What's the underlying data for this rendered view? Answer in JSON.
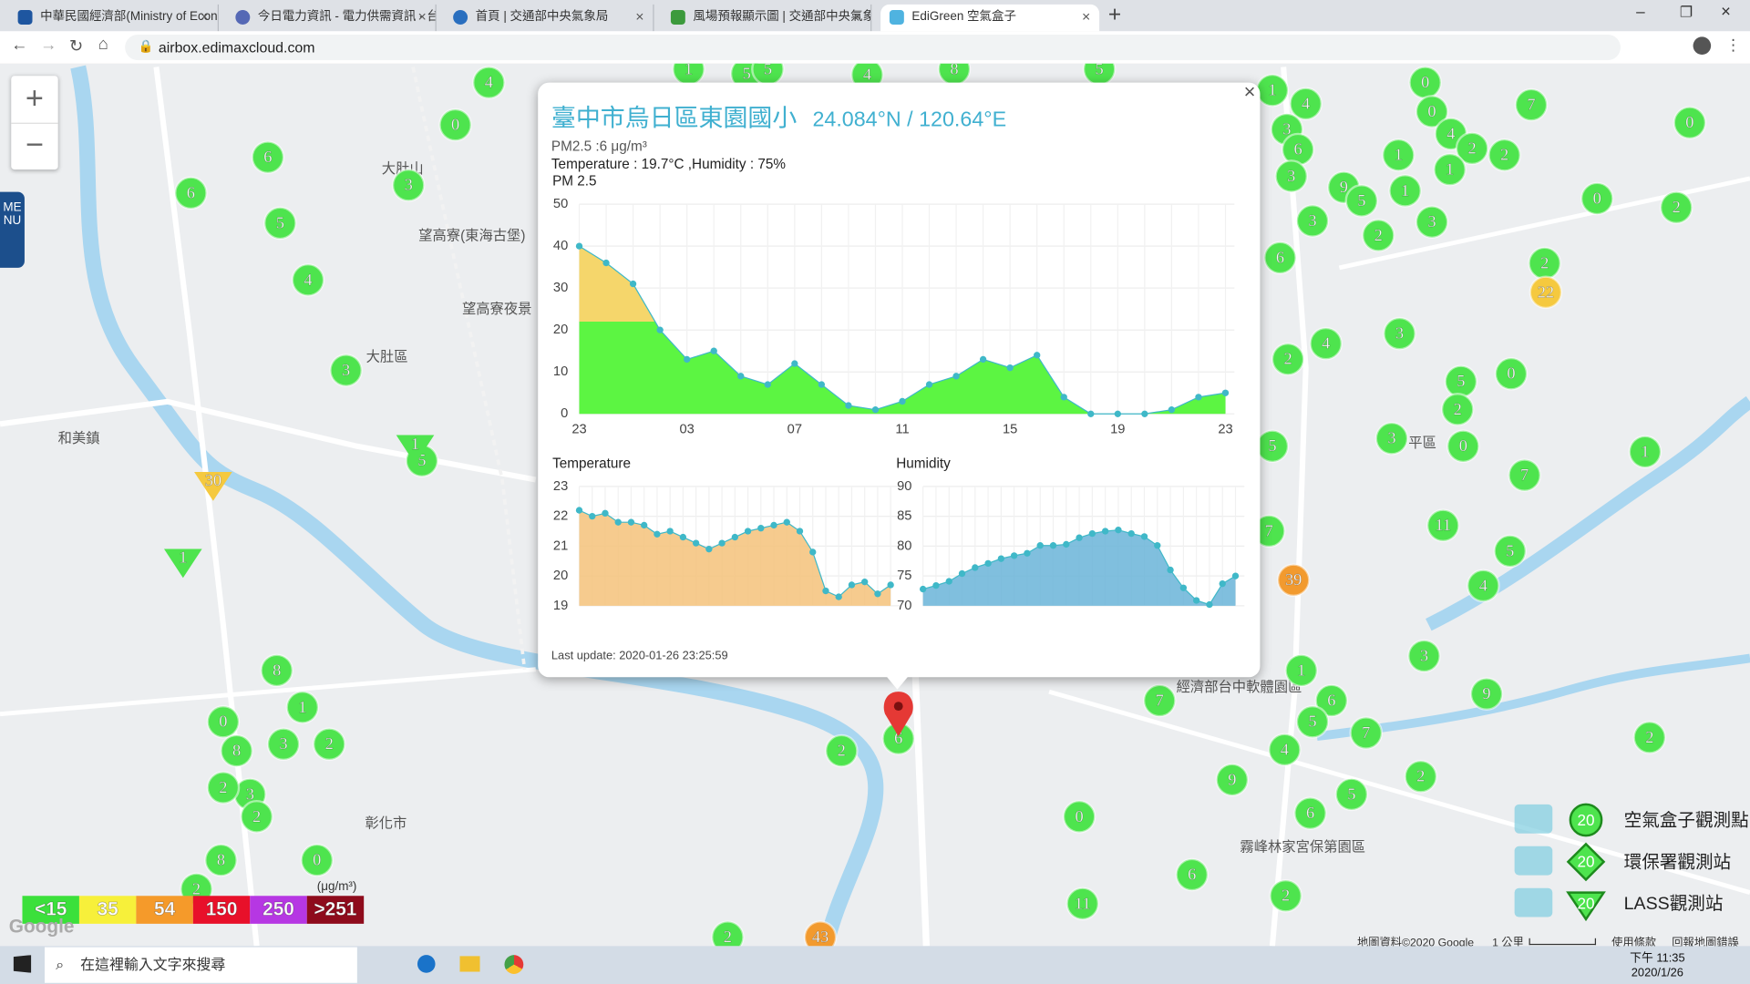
{
  "browser": {
    "tabs": [
      "中華民國經濟部(Ministry of Econ",
      "今日電力資訊 - 電力供需資訊 - 台",
      "首頁 | 交通部中央氣象局",
      "風場預報顯示圖 | 交通部中央氣象",
      "EdiGreen 空氣盒子"
    ],
    "url": "airbox.edimaxcloud.com"
  },
  "map": {
    "menu": "MENU",
    "zoom_in": "+",
    "zoom_out": "−",
    "places": [
      "大肚區",
      "和美鎮",
      "彰化市",
      "望高寮(東海古堡)",
      "望高寮夜景",
      "大肚山",
      "經濟部台中軟體園區",
      "霧峰林家宮保第園區",
      "平區"
    ],
    "markers": [
      {
        "label": "4"
      },
      {
        "label": "0"
      },
      {
        "label": "6"
      },
      {
        "label": "6"
      },
      {
        "label": "3"
      },
      {
        "label": "5"
      },
      {
        "label": "4"
      },
      {
        "label": "3"
      },
      {
        "label": "5"
      },
      {
        "label": "1"
      },
      {
        "label": "4"
      },
      {
        "label": "3"
      },
      {
        "label": "6"
      },
      {
        "label": "3"
      },
      {
        "label": "0"
      },
      {
        "label": "0"
      },
      {
        "label": "4"
      },
      {
        "label": "2"
      },
      {
        "label": "2"
      },
      {
        "label": "1"
      },
      {
        "label": "1"
      },
      {
        "label": "7"
      },
      {
        "label": "0"
      },
      {
        "label": "9"
      },
      {
        "label": "1"
      },
      {
        "label": "5"
      },
      {
        "label": "0"
      },
      {
        "label": "2"
      },
      {
        "label": "3"
      },
      {
        "label": "2"
      },
      {
        "label": "3"
      },
      {
        "label": "6"
      },
      {
        "label": "2"
      },
      {
        "label": "4"
      },
      {
        "label": "2"
      },
      {
        "label": "3"
      },
      {
        "label": "5"
      },
      {
        "label": "2"
      },
      {
        "label": "0"
      },
      {
        "label": "0"
      },
      {
        "label": "3"
      },
      {
        "label": "5"
      },
      {
        "label": "7"
      },
      {
        "label": "1"
      },
      {
        "label": "11"
      },
      {
        "label": "5"
      },
      {
        "label": "4"
      },
      {
        "label": "7"
      },
      {
        "label": "3"
      },
      {
        "label": "9"
      },
      {
        "label": "1"
      },
      {
        "label": "6"
      },
      {
        "label": "5"
      },
      {
        "label": "7"
      },
      {
        "label": "4"
      },
      {
        "label": "7"
      },
      {
        "label": "9"
      },
      {
        "label": "5"
      },
      {
        "label": "2"
      },
      {
        "label": "2"
      },
      {
        "label": "6"
      },
      {
        "label": "0"
      },
      {
        "label": "6"
      },
      {
        "label": "2"
      },
      {
        "label": "11"
      },
      {
        "label": "8"
      },
      {
        "label": "1"
      },
      {
        "label": "0"
      },
      {
        "label": "8"
      },
      {
        "label": "3"
      },
      {
        "label": "2"
      },
      {
        "label": "3"
      },
      {
        "label": "2"
      },
      {
        "label": "2"
      },
      {
        "label": "0"
      },
      {
        "label": "8"
      },
      {
        "label": "2"
      },
      {
        "label": "2"
      },
      {
        "label": "2"
      },
      {
        "label": "1"
      },
      {
        "label": "5"
      },
      {
        "label": "5"
      },
      {
        "label": "4"
      },
      {
        "label": "8"
      },
      {
        "label": "5"
      },
      {
        "label": "6"
      },
      {
        "label": "22",
        "color": "#f5c93f"
      },
      {
        "label": "39",
        "color": "#f29a2e"
      },
      {
        "label": "43",
        "color": "#f29a2e"
      },
      {
        "label": "1",
        "shape": "triangle"
      },
      {
        "label": "30",
        "shape": "triangle",
        "color": "#f5c93f"
      },
      {
        "label": "1",
        "shape": "triangle"
      }
    ],
    "scale_legend": {
      "unit": "(μg/m³)",
      "items": [
        {
          "label": "<15",
          "color": "#3be03b"
        },
        {
          "label": "35",
          "color": "#f7f03a"
        },
        {
          "label": "54",
          "color": "#f59a2a"
        },
        {
          "label": "150",
          "color": "#e8102a"
        },
        {
          "label": "250",
          "color": "#b637e3"
        },
        {
          "label": ">251",
          "color": "#8e0b1c"
        }
      ]
    },
    "station_legend": [
      {
        "badge": "20",
        "label": "空氣盒子觀測點"
      },
      {
        "badge": "20",
        "label": "環保署觀測站"
      },
      {
        "badge": "20",
        "label": "LASS觀測站"
      }
    ],
    "footer": [
      "地圖資料©2020 Google",
      "1 公里",
      "使用條款",
      "回報地圖錯誤"
    ],
    "google": "Google"
  },
  "popup": {
    "close": "×",
    "title": "臺中市烏日區東園國小",
    "coords": "24.084°N / 120.64°E",
    "lines": [
      "PM2.5 :6 μg/m³",
      "Temperature : 19.7°C ,Humidity : 75%"
    ],
    "charts": [
      {
        "type": "area",
        "title": "PM 2.5",
        "categories": [
          "23",
          null,
          null,
          null,
          "03",
          null,
          null,
          null,
          "07",
          null,
          null,
          null,
          "11",
          null,
          null,
          null,
          "15",
          null,
          null,
          null,
          "19",
          null,
          null,
          null,
          "23"
        ],
        "values": [
          40,
          36,
          31,
          20,
          13,
          15,
          9,
          7,
          12,
          7,
          2,
          1,
          3,
          7,
          9,
          13,
          11,
          14,
          4,
          0,
          0,
          0,
          1,
          4,
          5
        ],
        "ylim": [
          0,
          50
        ],
        "yticks": [
          0,
          10,
          20,
          30,
          40,
          50
        ],
        "grid": true,
        "color": "#3fb8c8",
        "fill": "#5cf542",
        "upper_fill": "#f5d66b"
      },
      {
        "type": "area",
        "title": "Temperature",
        "values": [
          22.2,
          22.0,
          22.1,
          21.8,
          21.8,
          21.7,
          21.4,
          21.5,
          21.3,
          21.1,
          20.9,
          21.1,
          21.3,
          21.5,
          21.6,
          21.7,
          21.8,
          21.5,
          20.8,
          19.5,
          19.3,
          19.7,
          19.8,
          19.4,
          19.7
        ],
        "ylim": [
          19,
          23
        ],
        "yticks": [
          19,
          20,
          21,
          22,
          23
        ],
        "grid": true,
        "color": "#3fb8c8",
        "fill": "#f5c27a"
      },
      {
        "type": "area",
        "title": "Humidity",
        "values": [
          72.8,
          73.4,
          74.1,
          75.4,
          76.4,
          77.1,
          77.9,
          78.4,
          78.8,
          80.1,
          80.1,
          80.3,
          81.4,
          82.1,
          82.5,
          82.7,
          82.1,
          81.6,
          80.1,
          76.0,
          73.0,
          70.9,
          70.2,
          73.7,
          75.0
        ],
        "ylim": [
          70,
          90
        ],
        "yticks": [
          70,
          75,
          80,
          85,
          90
        ],
        "grid": true,
        "color": "#3fb8c8",
        "fill": "#6ab4d8"
      }
    ],
    "last_update": "Last update: 2020-01-26 23:25:59"
  },
  "taskbar": {
    "search": "在這裡輸入文字來搜尋",
    "time": "下午 11:35",
    "date": "2020/1/26"
  }
}
